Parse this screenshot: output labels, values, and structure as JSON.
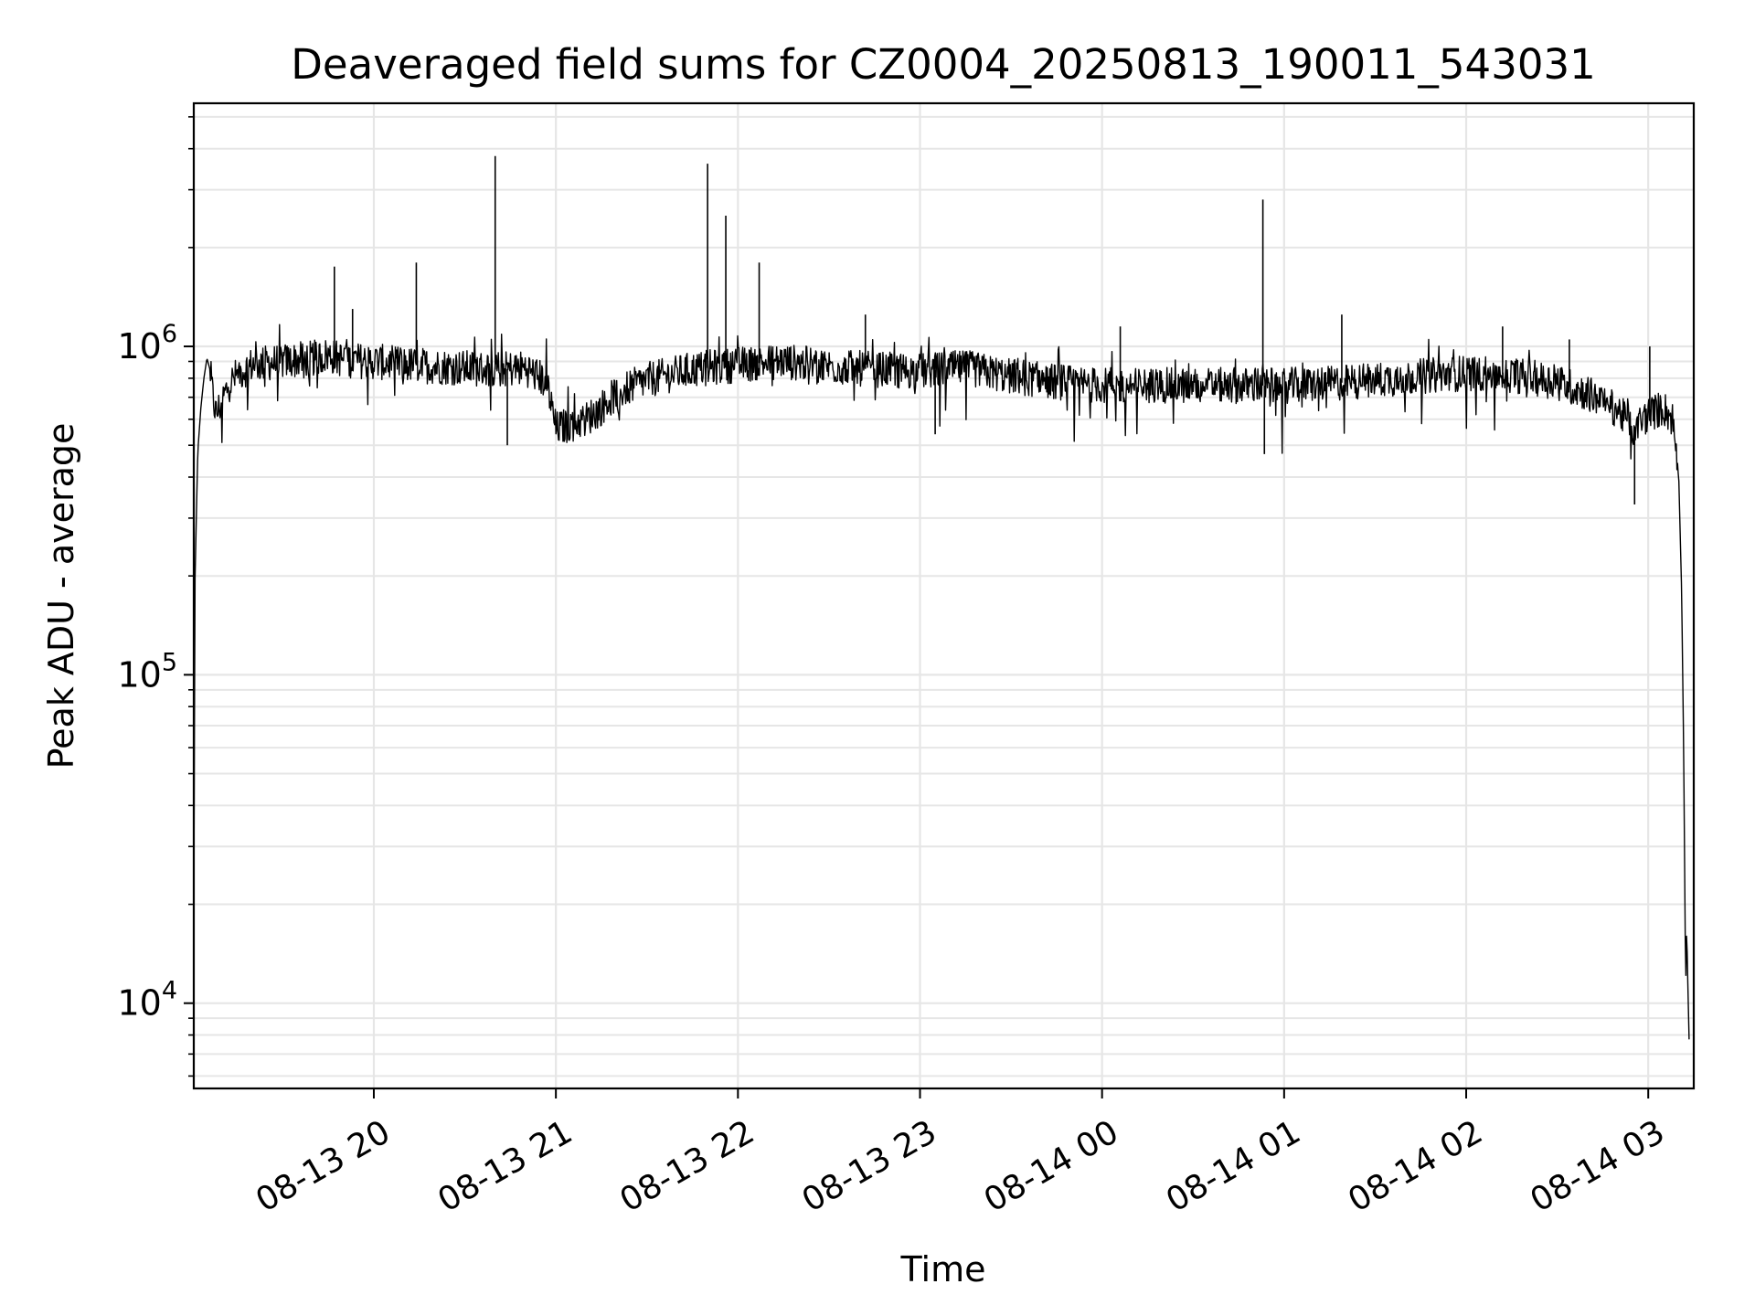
{
  "chart_data": {
    "type": "line",
    "title": "Deaveraged field sums for CZ0004_20250813_190011_543031",
    "xlabel": "Time",
    "ylabel": "Peak ADU - average",
    "yscale": "log",
    "ylim": [
      5500,
      5500000
    ],
    "xlim": [
      "2025-08-13 19:00:40",
      "2025-08-14 03:15:00"
    ],
    "grid": true,
    "line_color": "#000000",
    "grid_color": "#e6e6e6",
    "x_ticks": [
      {
        "value": "2025-08-13 20:00",
        "label": "08-13 20"
      },
      {
        "value": "2025-08-13 21:00",
        "label": "08-13 21"
      },
      {
        "value": "2025-08-13 22:00",
        "label": "08-13 22"
      },
      {
        "value": "2025-08-13 23:00",
        "label": "08-13 23"
      },
      {
        "value": "2025-08-14 00:00",
        "label": "08-14 00"
      },
      {
        "value": "2025-08-14 01:00",
        "label": "08-14 01"
      },
      {
        "value": "2025-08-14 02:00",
        "label": "08-14 02"
      },
      {
        "value": "2025-08-14 03:00",
        "label": "08-14 03"
      }
    ],
    "y_ticks": [
      {
        "value": 10000,
        "base": "10",
        "exp": "4"
      },
      {
        "value": 100000,
        "base": "10",
        "exp": "5"
      },
      {
        "value": 1000000,
        "base": "10",
        "exp": "6"
      }
    ],
    "series": [
      {
        "points": [
          [
            "2025-08-13 19:00:40",
            20000
          ],
          [
            "2025-08-13 19:00:50",
            48000
          ],
          [
            "2025-08-13 19:01:00",
            180000
          ],
          [
            "2025-08-13 19:01:30",
            300000
          ],
          [
            "2025-08-13 19:02:00",
            480000
          ],
          [
            "2025-08-13 19:03:00",
            650000
          ],
          [
            "2025-08-13 19:04:00",
            800000
          ],
          [
            "2025-08-13 19:05:00",
            920000
          ],
          [
            "2025-08-13 19:06:00",
            850000
          ],
          [
            "2025-08-13 19:07:00",
            700000
          ],
          [
            "2025-08-13 19:08:00",
            620000
          ],
          [
            "2025-08-13 19:10:00",
            680000
          ],
          [
            "2025-08-13 19:12:00",
            760000
          ],
          [
            "2025-08-13 19:15:00",
            820000
          ],
          [
            "2025-08-13 19:20:00",
            880000
          ],
          [
            "2025-08-13 19:30:00",
            900000
          ],
          [
            "2025-08-13 19:40:00",
            920000
          ],
          [
            "2025-08-13 19:45:00",
            940000
          ],
          [
            "2025-08-13 19:50:00",
            910000
          ],
          [
            "2025-08-13 20:00:00",
            900000
          ],
          [
            "2025-08-13 20:10:00",
            880000
          ],
          [
            "2025-08-13 20:20:00",
            870000
          ],
          [
            "2025-08-13 20:30:00",
            860000
          ],
          [
            "2025-08-13 20:40:00",
            850000
          ],
          [
            "2025-08-13 20:50:00",
            860000
          ],
          [
            "2025-08-13 20:57:00",
            780000
          ],
          [
            "2025-08-13 21:00:00",
            560000
          ],
          [
            "2025-08-13 21:05:00",
            580000
          ],
          [
            "2025-08-13 21:10:00",
            600000
          ],
          [
            "2025-08-13 21:15:00",
            650000
          ],
          [
            "2025-08-13 21:20:00",
            720000
          ],
          [
            "2025-08-13 21:30:00",
            790000
          ],
          [
            "2025-08-13 21:45:00",
            850000
          ],
          [
            "2025-08-13 22:00:00",
            880000
          ],
          [
            "2025-08-13 22:15:00",
            900000
          ],
          [
            "2025-08-13 22:30:00",
            870000
          ],
          [
            "2025-08-13 22:45:00",
            850000
          ],
          [
            "2025-08-13 23:00:00",
            840000
          ],
          [
            "2025-08-13 23:15:00",
            860000
          ],
          [
            "2025-08-13 23:30:00",
            810000
          ],
          [
            "2025-08-13 23:45:00",
            780000
          ],
          [
            "2025-08-14 00:00:00",
            760000
          ],
          [
            "2025-08-14 00:15:00",
            760000
          ],
          [
            "2025-08-14 00:30:00",
            760000
          ],
          [
            "2025-08-14 00:45:00",
            760000
          ],
          [
            "2025-08-14 01:00:00",
            760000
          ],
          [
            "2025-08-14 01:15:00",
            770000
          ],
          [
            "2025-08-14 01:30:00",
            790000
          ],
          [
            "2025-08-14 01:45:00",
            810000
          ],
          [
            "2025-08-14 02:00:00",
            830000
          ],
          [
            "2025-08-14 02:15:00",
            820000
          ],
          [
            "2025-08-14 02:30:00",
            780000
          ],
          [
            "2025-08-14 02:40:00",
            720000
          ],
          [
            "2025-08-14 02:50:00",
            640000
          ],
          [
            "2025-08-14 02:55:00",
            560000
          ],
          [
            "2025-08-14 03:00:00",
            620000
          ],
          [
            "2025-08-14 03:05:00",
            650000
          ],
          [
            "2025-08-14 03:08:00",
            600000
          ],
          [
            "2025-08-14 03:10:00",
            420000
          ],
          [
            "2025-08-14 03:11:00",
            180000
          ],
          [
            "2025-08-14 03:11:40",
            60000
          ],
          [
            "2025-08-14 03:12:20",
            11000
          ],
          [
            "2025-08-14 03:12:40",
            17000
          ],
          [
            "2025-08-14 03:13:00",
            12000
          ],
          [
            "2025-08-14 03:13:30",
            7500
          ]
        ],
        "spikes": [
          [
            "2025-08-13 19:47:00",
            1750000
          ],
          [
            "2025-08-13 19:53:00",
            1300000
          ],
          [
            "2025-08-13 20:14:00",
            1800000
          ],
          [
            "2025-08-13 20:40:00",
            3800000
          ],
          [
            "2025-08-13 20:44:00",
            500000
          ],
          [
            "2025-08-13 21:50:00",
            3600000
          ],
          [
            "2025-08-13 21:56:00",
            2500000
          ],
          [
            "2025-08-13 22:07:00",
            1800000
          ],
          [
            "2025-08-13 22:42:00",
            1250000
          ],
          [
            "2025-08-13 23:05:00",
            540000
          ],
          [
            "2025-08-14 00:06:00",
            1150000
          ],
          [
            "2025-08-14 00:53:00",
            2800000
          ],
          [
            "2025-08-14 00:53:30",
            470000
          ],
          [
            "2025-08-14 01:19:00",
            1250000
          ],
          [
            "2025-08-14 02:12:00",
            1150000
          ],
          [
            "2025-08-14 02:34:00",
            1050000
          ],
          [
            "2025-08-14 03:00:30",
            1000000
          ],
          [
            "2025-08-14 02:55:30",
            330000
          ]
        ]
      }
    ]
  }
}
